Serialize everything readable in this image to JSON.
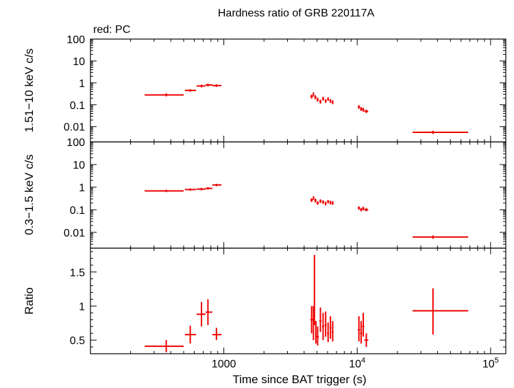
{
  "title": "Hardness ratio of GRB 220117A",
  "note": "red: PC",
  "xlabel": "Time since BAT trigger (s)",
  "colors": {
    "data": "#ee0000",
    "axes": "#000000"
  },
  "chart_data": [
    {
      "type": "scatter",
      "name": "hard",
      "ylabel": "1.51−10 keV c/s",
      "yscale": "log",
      "ylim": [
        0.002,
        100
      ],
      "yticks": [
        0.01,
        0.1,
        1,
        10,
        100
      ],
      "ytick_labels": [
        "0.01",
        "0.1",
        "1",
        "10",
        "100"
      ],
      "points": [
        {
          "x": 370,
          "xlo": 255,
          "xhi": 500,
          "y": 0.28,
          "ylo": 0.24,
          "yhi": 0.33
        },
        {
          "x": 560,
          "xlo": 510,
          "xhi": 620,
          "y": 0.45,
          "ylo": 0.39,
          "yhi": 0.52
        },
        {
          "x": 680,
          "xlo": 625,
          "xhi": 730,
          "y": 0.72,
          "ylo": 0.62,
          "yhi": 0.83
        },
        {
          "x": 760,
          "xlo": 730,
          "xhi": 820,
          "y": 0.8,
          "ylo": 0.68,
          "yhi": 0.92
        },
        {
          "x": 880,
          "xlo": 820,
          "xhi": 960,
          "y": 0.75,
          "ylo": 0.65,
          "yhi": 0.86
        },
        {
          "x": 4550,
          "xlo": 4450,
          "xhi": 4650,
          "y": 0.24,
          "ylo": 0.19,
          "yhi": 0.29
        },
        {
          "x": 4700,
          "xlo": 4650,
          "xhi": 4760,
          "y": 0.3,
          "ylo": 0.24,
          "yhi": 0.37
        },
        {
          "x": 4850,
          "xlo": 4770,
          "xhi": 4950,
          "y": 0.22,
          "ylo": 0.18,
          "yhi": 0.27
        },
        {
          "x": 5050,
          "xlo": 4950,
          "xhi": 5150,
          "y": 0.17,
          "ylo": 0.14,
          "yhi": 0.21
        },
        {
          "x": 5300,
          "xlo": 5200,
          "xhi": 5400,
          "y": 0.14,
          "ylo": 0.11,
          "yhi": 0.17
        },
        {
          "x": 5550,
          "xlo": 5450,
          "xhi": 5650,
          "y": 0.19,
          "ylo": 0.155,
          "yhi": 0.23
        },
        {
          "x": 5800,
          "xlo": 5700,
          "xhi": 5900,
          "y": 0.15,
          "ylo": 0.12,
          "yhi": 0.18
        },
        {
          "x": 6050,
          "xlo": 5950,
          "xhi": 6150,
          "y": 0.18,
          "ylo": 0.15,
          "yhi": 0.22
        },
        {
          "x": 6300,
          "xlo": 6200,
          "xhi": 6400,
          "y": 0.15,
          "ylo": 0.12,
          "yhi": 0.18
        },
        {
          "x": 6550,
          "xlo": 6450,
          "xhi": 6650,
          "y": 0.13,
          "ylo": 0.105,
          "yhi": 0.16
        },
        {
          "x": 10300,
          "xlo": 10100,
          "xhi": 10500,
          "y": 0.08,
          "ylo": 0.065,
          "yhi": 0.095
        },
        {
          "x": 10700,
          "xlo": 10500,
          "xhi": 10900,
          "y": 0.065,
          "ylo": 0.052,
          "yhi": 0.078
        },
        {
          "x": 11100,
          "xlo": 10900,
          "xhi": 11300,
          "y": 0.06,
          "ylo": 0.048,
          "yhi": 0.072
        },
        {
          "x": 11700,
          "xlo": 11300,
          "xhi": 12100,
          "y": 0.05,
          "ylo": 0.042,
          "yhi": 0.06
        },
        {
          "x": 37000,
          "xlo": 26000,
          "xhi": 68000,
          "y": 0.0055,
          "ylo": 0.0046,
          "yhi": 0.0065
        }
      ]
    },
    {
      "type": "scatter",
      "name": "soft",
      "ylabel": "0.3−1.5 keV c/s",
      "yscale": "log",
      "ylim": [
        0.002,
        100
      ],
      "yticks": [
        0.01,
        0.1,
        1,
        10,
        100
      ],
      "ytick_labels": [
        "0.01",
        "0.1",
        "1",
        "10",
        "100"
      ],
      "points": [
        {
          "x": 370,
          "xlo": 255,
          "xhi": 500,
          "y": 0.68,
          "ylo": 0.6,
          "yhi": 0.77
        },
        {
          "x": 560,
          "xlo": 510,
          "xhi": 620,
          "y": 0.78,
          "ylo": 0.69,
          "yhi": 0.88
        },
        {
          "x": 680,
          "xlo": 625,
          "xhi": 730,
          "y": 0.82,
          "ylo": 0.72,
          "yhi": 0.93
        },
        {
          "x": 760,
          "xlo": 730,
          "xhi": 820,
          "y": 0.88,
          "ylo": 0.77,
          "yhi": 1.0
        },
        {
          "x": 880,
          "xlo": 820,
          "xhi": 960,
          "y": 1.25,
          "ylo": 1.1,
          "yhi": 1.4
        },
        {
          "x": 4550,
          "xlo": 4450,
          "xhi": 4650,
          "y": 0.27,
          "ylo": 0.22,
          "yhi": 0.32
        },
        {
          "x": 4700,
          "xlo": 4650,
          "xhi": 4760,
          "y": 0.33,
          "ylo": 0.27,
          "yhi": 0.4
        },
        {
          "x": 4850,
          "xlo": 4770,
          "xhi": 4950,
          "y": 0.26,
          "ylo": 0.21,
          "yhi": 0.31
        },
        {
          "x": 5050,
          "xlo": 4950,
          "xhi": 5150,
          "y": 0.2,
          "ylo": 0.165,
          "yhi": 0.24
        },
        {
          "x": 5300,
          "xlo": 5200,
          "xhi": 5400,
          "y": 0.24,
          "ylo": 0.2,
          "yhi": 0.29
        },
        {
          "x": 5550,
          "xlo": 5450,
          "xhi": 5650,
          "y": 0.22,
          "ylo": 0.18,
          "yhi": 0.26
        },
        {
          "x": 5800,
          "xlo": 5700,
          "xhi": 5900,
          "y": 0.19,
          "ylo": 0.155,
          "yhi": 0.23
        },
        {
          "x": 6050,
          "xlo": 5950,
          "xhi": 6150,
          "y": 0.23,
          "ylo": 0.19,
          "yhi": 0.27
        },
        {
          "x": 6300,
          "xlo": 6200,
          "xhi": 6400,
          "y": 0.21,
          "ylo": 0.17,
          "yhi": 0.25
        },
        {
          "x": 6550,
          "xlo": 6450,
          "xhi": 6650,
          "y": 0.2,
          "ylo": 0.165,
          "yhi": 0.24
        },
        {
          "x": 10300,
          "xlo": 10100,
          "xhi": 10500,
          "y": 0.12,
          "ylo": 0.1,
          "yhi": 0.14
        },
        {
          "x": 10700,
          "xlo": 10500,
          "xhi": 10900,
          "y": 0.1,
          "ylo": 0.085,
          "yhi": 0.12
        },
        {
          "x": 11100,
          "xlo": 10900,
          "xhi": 11300,
          "y": 0.115,
          "ylo": 0.095,
          "yhi": 0.135
        },
        {
          "x": 11700,
          "xlo": 11300,
          "xhi": 12100,
          "y": 0.1,
          "ylo": 0.085,
          "yhi": 0.12
        },
        {
          "x": 37000,
          "xlo": 26000,
          "xhi": 68000,
          "y": 0.0062,
          "ylo": 0.0052,
          "yhi": 0.0073
        }
      ]
    },
    {
      "type": "scatter",
      "name": "ratio",
      "ylabel": "Ratio",
      "yscale": "linear",
      "ylim": [
        0.3,
        1.85
      ],
      "yticks": [
        0.5,
        1,
        1.5
      ],
      "ytick_labels": [
        "0.5",
        "1",
        "1.5"
      ],
      "points": [
        {
          "x": 370,
          "xlo": 255,
          "xhi": 500,
          "y": 0.41,
          "ylo": 0.32,
          "yhi": 0.5
        },
        {
          "x": 560,
          "xlo": 510,
          "xhi": 620,
          "y": 0.58,
          "ylo": 0.45,
          "yhi": 0.71
        },
        {
          "x": 680,
          "xlo": 625,
          "xhi": 730,
          "y": 0.88,
          "ylo": 0.7,
          "yhi": 1.06
        },
        {
          "x": 760,
          "xlo": 730,
          "xhi": 820,
          "y": 0.91,
          "ylo": 0.72,
          "yhi": 1.1
        },
        {
          "x": 880,
          "xlo": 820,
          "xhi": 960,
          "y": 0.58,
          "ylo": 0.5,
          "yhi": 0.68
        },
        {
          "x": 4550,
          "xlo": 4450,
          "xhi": 4650,
          "y": 0.8,
          "ylo": 0.6,
          "yhi": 1.0
        },
        {
          "x": 4700,
          "xlo": 4650,
          "xhi": 4760,
          "y": 0.92,
          "ylo": 0.5,
          "yhi": 1.0
        },
        {
          "x": 4780,
          "xlo": 4760,
          "xhi": 4810,
          "y": 1.2,
          "ylo": 0.72,
          "yhi": 1.75
        },
        {
          "x": 4900,
          "xlo": 4850,
          "xhi": 4950,
          "y": 0.6,
          "ylo": 0.45,
          "yhi": 0.78
        },
        {
          "x": 5050,
          "xlo": 4950,
          "xhi": 5150,
          "y": 0.55,
          "ylo": 0.42,
          "yhi": 0.7
        },
        {
          "x": 5300,
          "xlo": 5200,
          "xhi": 5400,
          "y": 0.78,
          "ylo": 0.62,
          "yhi": 0.98
        },
        {
          "x": 5550,
          "xlo": 5450,
          "xhi": 5650,
          "y": 0.7,
          "ylo": 0.5,
          "yhi": 0.9
        },
        {
          "x": 5800,
          "xlo": 5700,
          "xhi": 5900,
          "y": 0.72,
          "ylo": 0.55,
          "yhi": 0.92
        },
        {
          "x": 6050,
          "xlo": 5950,
          "xhi": 6150,
          "y": 0.6,
          "ylo": 0.47,
          "yhi": 0.76
        },
        {
          "x": 6300,
          "xlo": 6200,
          "xhi": 6400,
          "y": 0.68,
          "ylo": 0.52,
          "yhi": 0.85
        },
        {
          "x": 6550,
          "xlo": 6450,
          "xhi": 6650,
          "y": 0.62,
          "ylo": 0.48,
          "yhi": 0.78
        },
        {
          "x": 10300,
          "xlo": 10100,
          "xhi": 10500,
          "y": 0.65,
          "ylo": 0.48,
          "yhi": 0.85
        },
        {
          "x": 10700,
          "xlo": 10500,
          "xhi": 10900,
          "y": 0.6,
          "ylo": 0.45,
          "yhi": 0.78
        },
        {
          "x": 11100,
          "xlo": 10900,
          "xhi": 11300,
          "y": 0.7,
          "ylo": 0.55,
          "yhi": 0.9
        },
        {
          "x": 11700,
          "xlo": 11300,
          "xhi": 12100,
          "y": 0.5,
          "ylo": 0.4,
          "yhi": 0.6
        },
        {
          "x": 37000,
          "xlo": 26000,
          "xhi": 68000,
          "y": 0.93,
          "ylo": 0.58,
          "yhi": 1.26
        }
      ]
    }
  ],
  "x_axis": {
    "scale": "log",
    "xlim": [
      100,
      130000
    ],
    "major_ticks": [
      1000,
      10000,
      100000
    ],
    "major_labels": [
      {
        "base": "1000",
        "exp": ""
      },
      {
        "base": "10",
        "exp": "4"
      },
      {
        "base": "10",
        "exp": "5"
      }
    ]
  }
}
